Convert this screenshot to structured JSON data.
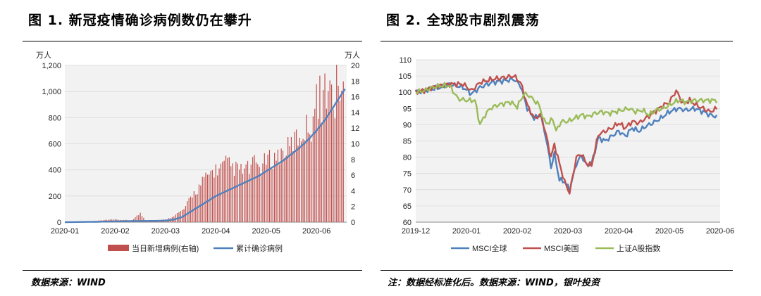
{
  "figure1": {
    "title": "图 1. 新冠疫情确诊病例数仍在攀升",
    "source": "数据来源：WIND"
  },
  "figure2": {
    "title": "图 2. 全球股市剧烈震荡",
    "source": "注：数据经标准化后。数据来源：WIND，银叶投资"
  },
  "chart_data": [
    {
      "type": "bar+line",
      "title": "",
      "left_unit": "万人",
      "right_unit": "万人",
      "ylim_left": [
        0,
        1200
      ],
      "ylim_right": [
        0,
        20
      ],
      "yticks_left": [
        "0",
        "200",
        "400",
        "600",
        "800",
        "1,000",
        "1,200"
      ],
      "yticks_right": [
        "0",
        "2",
        "4",
        "6",
        "8",
        "10",
        "12",
        "14",
        "16",
        "18",
        "20"
      ],
      "xticks": [
        "2020-01",
        "2020-02",
        "2020-03",
        "2020-04",
        "2020-05",
        "2020-06"
      ],
      "legend": [
        "当日新增病例(右轴)",
        "累计确诊病例"
      ],
      "colors": {
        "bars": "#c0504d",
        "line": "#4f81bd"
      },
      "x_start": "2020-01-01",
      "days_per_month": 30,
      "months_shown": 5.6,
      "new_cases_right_axis": [
        [
          0,
          0
        ],
        [
          15,
          0.1
        ],
        [
          20,
          0.2
        ],
        [
          25,
          0.3
        ],
        [
          30,
          0.35
        ],
        [
          38,
          0.25
        ],
        [
          40,
          0.3
        ],
        [
          45,
          1.2
        ],
        [
          48,
          0.3
        ],
        [
          55,
          0.2
        ],
        [
          58,
          0.3
        ],
        [
          62,
          0.5
        ],
        [
          64,
          0.8
        ],
        [
          66,
          1
        ],
        [
          68,
          1.3
        ],
        [
          70,
          1.6
        ],
        [
          72,
          2
        ],
        [
          74,
          3
        ],
        [
          76,
          3.8
        ],
        [
          78,
          4.2
        ],
        [
          80,
          4.8
        ],
        [
          82,
          5.5
        ],
        [
          84,
          6
        ],
        [
          86,
          6.5
        ],
        [
          88,
          7
        ],
        [
          90,
          7.2
        ],
        [
          92,
          7.3
        ],
        [
          94,
          7.6
        ],
        [
          96,
          8
        ],
        [
          98,
          7.8
        ],
        [
          100,
          7.5
        ],
        [
          102,
          7.3
        ],
        [
          104,
          7.2
        ],
        [
          106,
          7
        ],
        [
          108,
          7.4
        ],
        [
          110,
          7.3
        ],
        [
          112,
          7.8
        ],
        [
          114,
          8.2
        ],
        [
          116,
          7.5
        ],
        [
          118,
          7.8
        ],
        [
          120,
          8.5
        ],
        [
          122,
          8.6
        ],
        [
          124,
          8.7
        ],
        [
          126,
          9
        ],
        [
          128,
          9.2
        ],
        [
          130,
          9.6
        ],
        [
          132,
          10
        ],
        [
          134,
          10.2
        ],
        [
          136,
          11
        ],
        [
          138,
          11.5
        ],
        [
          140,
          11.8
        ],
        [
          142,
          12.5
        ],
        [
          144,
          13
        ],
        [
          146,
          13.5
        ],
        [
          148,
          15
        ],
        [
          150,
          16.3
        ],
        [
          152,
          17.3
        ],
        [
          154,
          18
        ],
        [
          156,
          18.2
        ],
        [
          158,
          18
        ],
        [
          160,
          17.8
        ],
        [
          162,
          19
        ],
        [
          164,
          18.6
        ],
        [
          166,
          18
        ]
      ],
      "cumulative_left_axis": [
        [
          0,
          0
        ],
        [
          20,
          3
        ],
        [
          30,
          6
        ],
        [
          45,
          9
        ],
        [
          55,
          10
        ],
        [
          60,
          12
        ],
        [
          65,
          20
        ],
        [
          70,
          40
        ],
        [
          75,
          80
        ],
        [
          80,
          120
        ],
        [
          85,
          160
        ],
        [
          90,
          200
        ],
        [
          95,
          230
        ],
        [
          100,
          260
        ],
        [
          105,
          290
        ],
        [
          110,
          320
        ],
        [
          115,
          350
        ],
        [
          120,
          390
        ],
        [
          125,
          430
        ],
        [
          130,
          470
        ],
        [
          135,
          520
        ],
        [
          140,
          570
        ],
        [
          145,
          630
        ],
        [
          150,
          700
        ],
        [
          155,
          780
        ],
        [
          160,
          880
        ],
        [
          165,
          980
        ],
        [
          167,
          1020
        ]
      ]
    },
    {
      "type": "line",
      "title": "",
      "ylim": [
        60,
        110
      ],
      "yticks": [
        "60",
        "65",
        "70",
        "75",
        "80",
        "85",
        "90",
        "95",
        "100",
        "105",
        "110"
      ],
      "xticks": [
        "2019-12",
        "2020-01",
        "2020-02",
        "2020-03",
        "2020-04",
        "2020-05",
        "2020-06"
      ],
      "x_start": "2019-12-01",
      "days_per_month": 30,
      "months_shown": 6,
      "series": [
        {
          "name": "MSCI全球",
          "color": "#4f81bd",
          "values": [
            [
              0,
              100
            ],
            [
              5,
              100.5
            ],
            [
              10,
              101
            ],
            [
              15,
              101.5
            ],
            [
              20,
              102.5
            ],
            [
              28,
              101.5
            ],
            [
              33,
              99.5
            ],
            [
              38,
              101.5
            ],
            [
              45,
              103
            ],
            [
              52,
              103.5
            ],
            [
              58,
              104
            ],
            [
              62,
              102
            ],
            [
              66,
              95
            ],
            [
              70,
              92
            ],
            [
              74,
              93
            ],
            [
              77,
              86
            ],
            [
              80,
              77
            ],
            [
              82,
              81
            ],
            [
              85,
              73
            ],
            [
              88,
              72.5
            ],
            [
              91,
              70
            ],
            [
              95,
              78
            ],
            [
              98,
              80.5
            ],
            [
              101,
              77.5
            ],
            [
              104,
              78
            ],
            [
              108,
              86
            ],
            [
              112,
              85
            ],
            [
              116,
              86.5
            ],
            [
              120,
              88
            ],
            [
              124,
              86.5
            ],
            [
              128,
              89
            ],
            [
              132,
              88
            ],
            [
              136,
              89.5
            ],
            [
              140,
              90.5
            ],
            [
              145,
              92
            ],
            [
              150,
              94
            ],
            [
              155,
              95
            ],
            [
              160,
              94.5
            ],
            [
              165,
              95
            ],
            [
              170,
              94
            ],
            [
              174,
              93
            ],
            [
              178,
              92.5
            ]
          ]
        },
        {
          "name": "MSCI美国",
          "color": "#c0504d",
          "values": [
            [
              0,
              100
            ],
            [
              5,
              100.5
            ],
            [
              10,
              101.5
            ],
            [
              15,
              102
            ],
            [
              20,
              102.5
            ],
            [
              28,
              102.5
            ],
            [
              33,
              100.5
            ],
            [
              38,
              103
            ],
            [
              45,
              104
            ],
            [
              52,
              104.5
            ],
            [
              58,
              105
            ],
            [
              62,
              103
            ],
            [
              66,
              96
            ],
            [
              70,
              92
            ],
            [
              74,
              93
            ],
            [
              77,
              87
            ],
            [
              80,
              80
            ],
            [
              82,
              84
            ],
            [
              85,
              78
            ],
            [
              88,
              72.5
            ],
            [
              91,
              69
            ],
            [
              95,
              80
            ],
            [
              98,
              81
            ],
            [
              101,
              78
            ],
            [
              104,
              77.5
            ],
            [
              108,
              87
            ],
            [
              112,
              88
            ],
            [
              116,
              89
            ],
            [
              120,
              90.5
            ],
            [
              124,
              89
            ],
            [
              128,
              91
            ],
            [
              132,
              90.5
            ],
            [
              136,
              92
            ],
            [
              140,
              93.5
            ],
            [
              145,
              95.5
            ],
            [
              150,
              97
            ],
            [
              154,
              100.5
            ],
            [
              158,
              96.5
            ],
            [
              162,
              97.5
            ],
            [
              166,
              96
            ],
            [
              170,
              95
            ],
            [
              174,
              94
            ],
            [
              178,
              95
            ]
          ]
        },
        {
          "name": "上证A股指数",
          "color": "#9bbb59",
          "values": [
            [
              0,
              100
            ],
            [
              5,
              100.5
            ],
            [
              10,
              101.5
            ],
            [
              15,
              102
            ],
            [
              20,
              102
            ],
            [
              25,
              98
            ],
            [
              30,
              97.5
            ],
            [
              35,
              97.5
            ],
            [
              38,
              90
            ],
            [
              41,
              93
            ],
            [
              44,
              95
            ],
            [
              48,
              96
            ],
            [
              52,
              96.5
            ],
            [
              56,
              97
            ],
            [
              60,
              95.5
            ],
            [
              64,
              99.5
            ],
            [
              67,
              99
            ],
            [
              70,
              97.5
            ],
            [
              73,
              96
            ],
            [
              76,
              91
            ],
            [
              79,
              90.5
            ],
            [
              81,
              92
            ],
            [
              83,
              88
            ],
            [
              86,
              91
            ],
            [
              90,
              91
            ],
            [
              94,
              92
            ],
            [
              98,
              93
            ],
            [
              102,
              92.5
            ],
            [
              106,
              93.5
            ],
            [
              110,
              94
            ],
            [
              114,
              93.5
            ],
            [
              118,
              94
            ],
            [
              122,
              94.5
            ],
            [
              126,
              95
            ],
            [
              130,
              94
            ],
            [
              134,
              94.5
            ],
            [
              138,
              93
            ],
            [
              142,
              94.5
            ],
            [
              146,
              95
            ],
            [
              150,
              96
            ],
            [
              155,
              97.5
            ],
            [
              160,
              97
            ],
            [
              165,
              97.5
            ],
            [
              170,
              97.5
            ],
            [
              175,
              97.5
            ],
            [
              178,
              97.5
            ]
          ]
        }
      ]
    }
  ]
}
